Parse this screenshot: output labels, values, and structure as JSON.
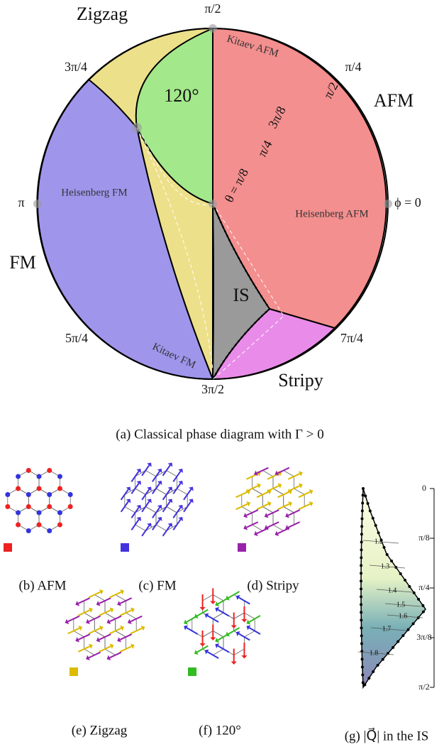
{
  "panel_a": {
    "caption": "(a)  Classical phase diagram with Γ > 0",
    "phases": {
      "zigzag": "Zigzag",
      "afm": "AFM",
      "fm": "FM",
      "stripy": "Stripy",
      "threefold": "120°",
      "is": "IS"
    },
    "phi_labels": [
      "ϕ = 0",
      "π/4",
      "π/2",
      "3π/4",
      "π",
      "5π/4",
      "3π/2",
      "7π/4"
    ],
    "theta_labels": [
      "θ = π/8",
      "π/4",
      "3π/8",
      "π/2"
    ],
    "points": [
      "Kitaev AFM",
      "Heisenberg AFM",
      "Heisenberg FM",
      "Kitaev FM"
    ]
  },
  "panels": [
    {
      "caption": "(b) AFM"
    },
    {
      "caption": "(c) FM"
    },
    {
      "caption": "(d) Stripy"
    },
    {
      "caption": "(e) Zigzag"
    },
    {
      "caption": "(f) 120°"
    }
  ],
  "panel_g": {
    "caption": "(g) |Q⃗| in the IS",
    "ticks": [
      "0",
      "π/8",
      "π/4",
      "3π/8",
      "π/2"
    ],
    "contours": [
      1.2,
      1.3,
      1.4,
      1.5,
      1.6,
      1.7,
      1.8
    ]
  }
}
